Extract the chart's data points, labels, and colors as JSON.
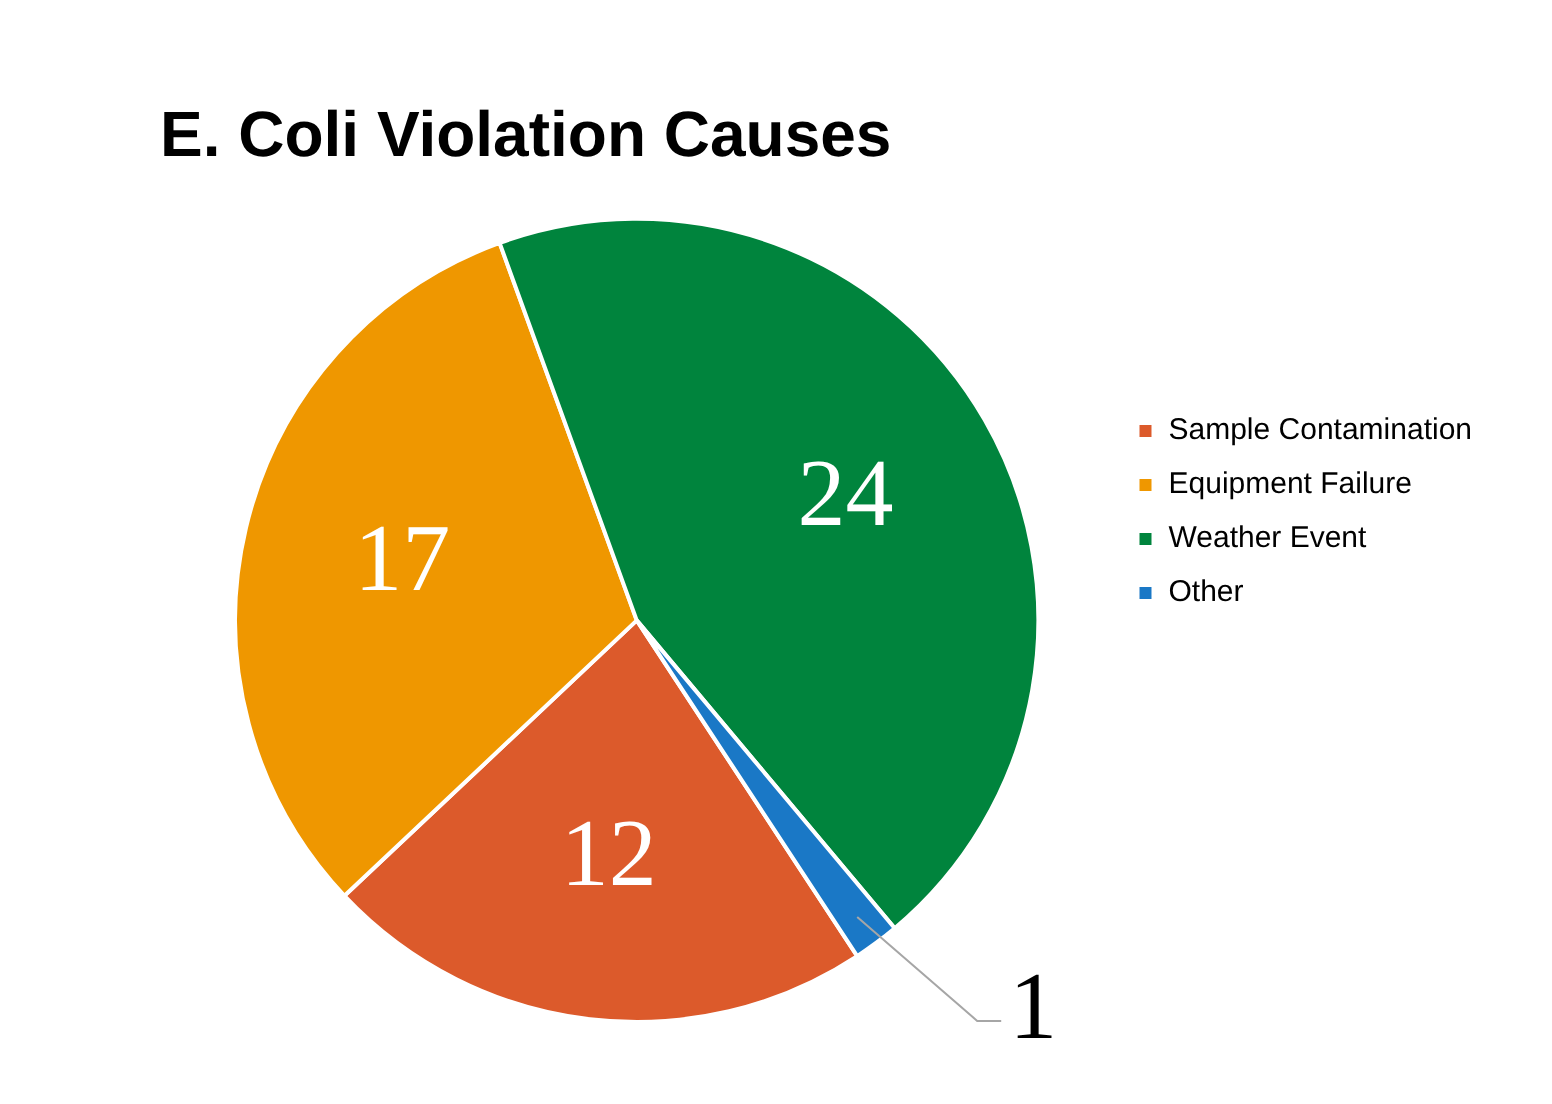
{
  "chart_data": {
    "type": "pie",
    "title": "E. Coli Violation Causes",
    "categories": [
      "Sample Contamination",
      "Equipment Failure",
      "Weather Event",
      "Other"
    ],
    "values": [
      12,
      17,
      24,
      1
    ],
    "colors": [
      "#dc5a2b",
      "#ef9700",
      "#00843d",
      "#1a78c6"
    ],
    "data_labels": true,
    "legend": "right"
  }
}
